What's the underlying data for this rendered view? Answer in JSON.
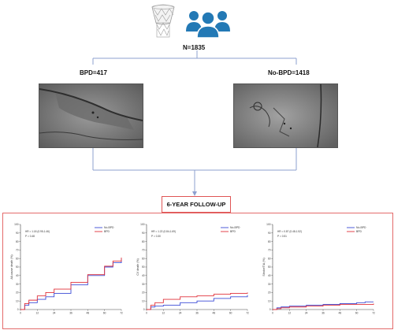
{
  "top": {
    "total": "N=1835"
  },
  "groups": {
    "left": "BPD=417",
    "right": "No-BPD=1418"
  },
  "followup": {
    "label": "6-YEAR FOLLOW-UP"
  },
  "colors": {
    "no_bpd": "#3b4bd6",
    "bpd": "#e0303a",
    "connector": "#8ea0cf",
    "icon_people": "#2379b5",
    "frame": "#e46b6b"
  },
  "icons": {
    "valve": "transcatheter-valve-icon",
    "people": "patient-group-icon"
  },
  "chart_data": [
    {
      "type": "line",
      "ylabel": "All-cause death (%)",
      "ylim": [
        0,
        100
      ],
      "xlim": [
        0,
        72
      ],
      "yticks": [
        0,
        10,
        20,
        30,
        40,
        50,
        60,
        70,
        80,
        90,
        100
      ],
      "xticks": [
        0,
        12,
        24,
        36,
        48,
        60,
        72
      ],
      "annotations": [
        "HR = 1.18 (0.95-1.46)",
        "P = 0.48"
      ],
      "legend_position": "top-right",
      "series": [
        {
          "name": "No-BPD",
          "x": [
            0,
            3,
            6,
            12,
            18,
            24,
            36,
            48,
            60,
            66,
            72
          ],
          "values": [
            0,
            5,
            8,
            12,
            15,
            19,
            29,
            40,
            50,
            55,
            60
          ]
        },
        {
          "name": "BPD",
          "x": [
            0,
            3,
            6,
            12,
            18,
            24,
            36,
            48,
            60,
            66,
            72
          ],
          "values": [
            0,
            7,
            11,
            16,
            20,
            24,
            32,
            41,
            51,
            57,
            61
          ]
        }
      ]
    },
    {
      "type": "line",
      "ylabel": "CV death (%)",
      "ylim": [
        0,
        100
      ],
      "xlim": [
        0,
        72
      ],
      "yticks": [
        0,
        10,
        20,
        30,
        40,
        50,
        60,
        70,
        80,
        90,
        100
      ],
      "xticks": [
        0,
        12,
        24,
        36,
        48,
        60,
        72
      ],
      "annotations": [
        "HR = 1.22 (0.84-1.69)",
        "P = 0.30"
      ],
      "legend_position": "top-right",
      "series": [
        {
          "name": "No-BPD",
          "x": [
            0,
            3,
            6,
            12,
            24,
            36,
            48,
            60,
            72
          ],
          "values": [
            0,
            3,
            4,
            5,
            8,
            10,
            13,
            15,
            17
          ]
        },
        {
          "name": "BPD",
          "x": [
            0,
            3,
            6,
            12,
            24,
            36,
            48,
            60,
            72
          ],
          "values": [
            0,
            5,
            8,
            12,
            15,
            16,
            18,
            19,
            20
          ]
        }
      ]
    },
    {
      "type": "line",
      "ylabel": "Stroke/TIA (%)",
      "ylim": [
        0,
        100
      ],
      "xlim": [
        0,
        72
      ],
      "yticks": [
        0,
        10,
        20,
        30,
        40,
        50,
        60,
        70,
        80,
        90,
        100
      ],
      "xticks": [
        0,
        12,
        24,
        36,
        48,
        60,
        72
      ],
      "annotations": [
        "HR = 0.87 (0.48-1.52)",
        "P = 0.51"
      ],
      "legend_position": "top-right",
      "series": [
        {
          "name": "No-BPD",
          "x": [
            0,
            3,
            6,
            12,
            24,
            36,
            48,
            60,
            66,
            72
          ],
          "values": [
            0,
            2,
            3,
            4,
            5,
            6,
            7,
            8,
            9,
            9
          ]
        },
        {
          "name": "BPD",
          "x": [
            0,
            3,
            6,
            12,
            24,
            36,
            48,
            60,
            72
          ],
          "values": [
            0,
            1,
            2,
            3,
            4,
            5,
            6,
            6,
            7
          ]
        }
      ]
    }
  ]
}
